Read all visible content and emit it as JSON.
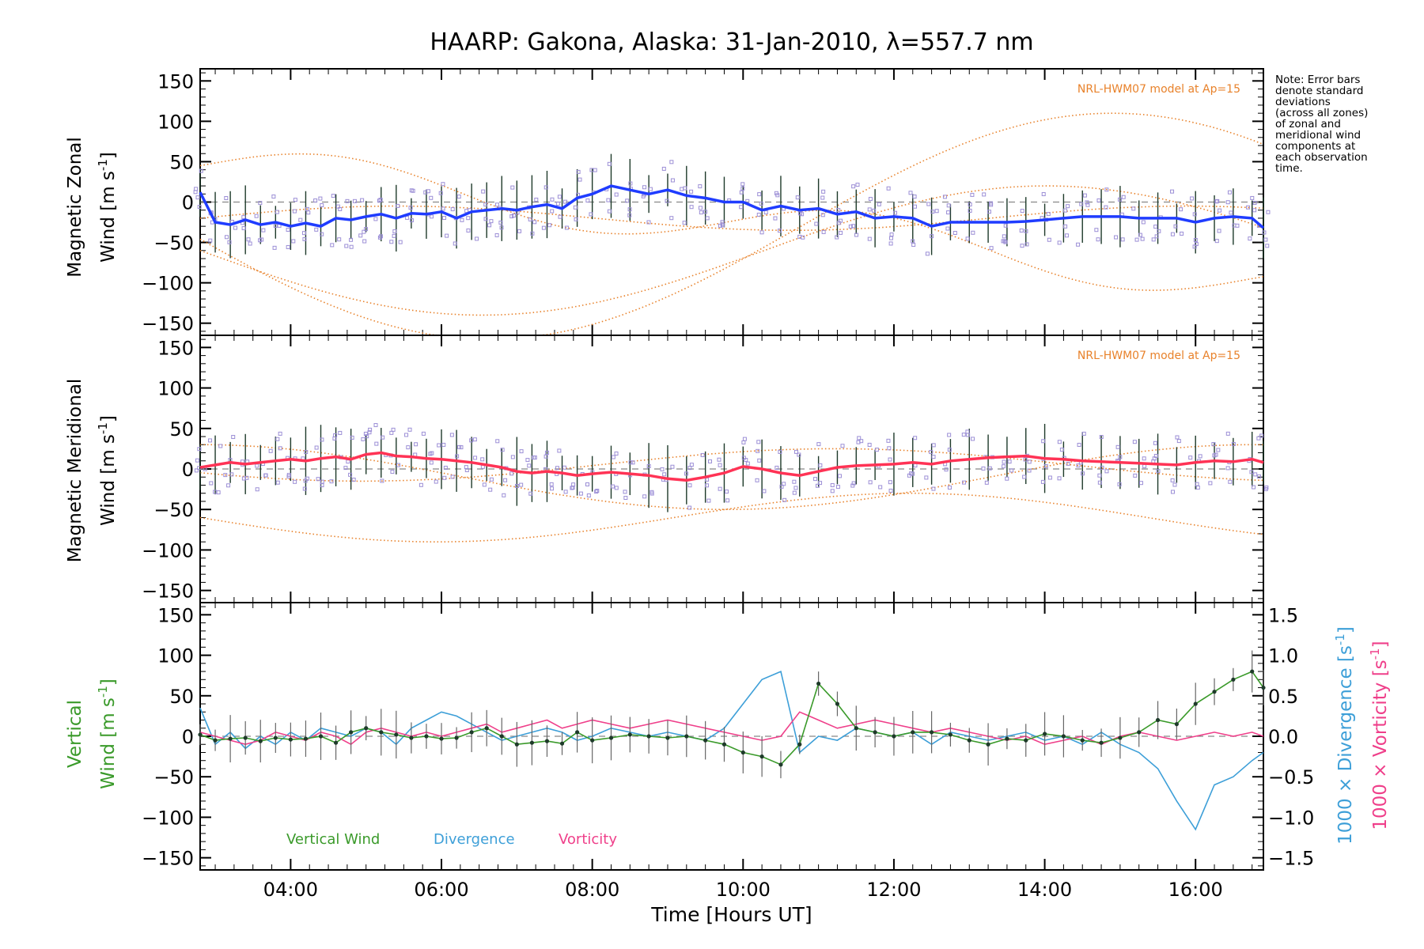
{
  "title": "HAARP: Gakona,  Alaska: 31-Jan-2010, λ=557.7 nm",
  "note": [
    "Note: Error bars",
    "denote standard",
    "deviations",
    "(across all zones)",
    "of zonal and",
    "meridional wind",
    "components at",
    "each observation",
    "time."
  ],
  "xlabel": "Time [Hours UT]",
  "xticks": [
    "04:00",
    "06:00",
    "08:00",
    "10:00",
    "12:00",
    "14:00",
    "16:00"
  ],
  "yticks": [
    "150",
    "100",
    "50",
    "0",
    "−50",
    "−100",
    "−150"
  ],
  "rticks": [
    "1.5",
    "1.0",
    "0.5",
    "0.0",
    "−0.5",
    "−1.0",
    "−1.5"
  ],
  "panels": {
    "zonal": {
      "ylabel1": "Magnetic Zonal",
      "ylabel2": "Wind [m s",
      "ylabel_sup": "-1",
      "ylabel_end": "]",
      "model_label": "NRL-HWM07 model at Ap=15"
    },
    "meridional": {
      "ylabel1": "Magnetic Meridional",
      "ylabel2": "Wind [m s",
      "ylabel_sup": "-1",
      "ylabel_end": "]",
      "model_label": "NRL-HWM07 model at Ap=15"
    },
    "vertical": {
      "ylabel1": "Vertical",
      "ylabel2": "Wind [m s",
      "ylabel_sup": "-1",
      "ylabel_end": "]",
      "right_label1": "1000 × Divergence [s",
      "right_label2": "1000 × Vorticity [s",
      "right_sup": "-1",
      "right_end": "]"
    }
  },
  "legend": {
    "vertical": "Vertical Wind",
    "divergence": "Divergence",
    "vorticity": "Vorticity"
  },
  "colors": {
    "zonal": "#1f3cff",
    "meridional": "#ff3355",
    "vertical": "#3a9a2a",
    "divergence": "#3d9fd8",
    "vorticity": "#ef3f8a",
    "model": "#e8822b",
    "scatter": "#9c8fd6",
    "errorbar": "#1e3a2a"
  },
  "chart_data": [
    {
      "type": "line",
      "title": "Magnetic Zonal Wind",
      "xlim": [
        2.8,
        16.9
      ],
      "ylim": [
        -165,
        165
      ],
      "series": [
        {
          "x": [
            2.8,
            3.0,
            3.2,
            3.4,
            3.6,
            3.8,
            4.0,
            4.2,
            4.4,
            4.6,
            4.8,
            5.0,
            5.2,
            5.4,
            5.6,
            5.8,
            6.0,
            6.2,
            6.4,
            6.6,
            6.8,
            7.0,
            7.2,
            7.4,
            7.6,
            7.8,
            8.0,
            8.25,
            8.5,
            8.75,
            9.0,
            9.25,
            9.5,
            9.75,
            10.0,
            10.25,
            10.5,
            10.75,
            11.0,
            11.25,
            11.5,
            11.75,
            12.0,
            12.25,
            12.5,
            12.75,
            13.0,
            13.25,
            13.5,
            13.75,
            14.0,
            14.25,
            14.5,
            14.75,
            15.0,
            15.25,
            15.5,
            15.75,
            16.0,
            16.25,
            16.5,
            16.75,
            16.9
          ],
          "values": [
            12,
            -25,
            -28,
            -22,
            -28,
            -25,
            -30,
            -26,
            -30,
            -20,
            -22,
            -18,
            -15,
            -20,
            -14,
            -15,
            -12,
            -20,
            -12,
            -10,
            -8,
            -10,
            -6,
            -3,
            -8,
            5,
            10,
            20,
            15,
            10,
            15,
            8,
            5,
            0,
            0,
            -10,
            -5,
            -10,
            -8,
            -15,
            -12,
            -20,
            -18,
            -20,
            -30,
            -25,
            -25,
            -25,
            -25,
            -24,
            -22,
            -20,
            -18,
            -18,
            -18,
            -20,
            -20,
            -20,
            -25,
            -20,
            -18,
            -20,
            -32
          ]
        }
      ]
    },
    {
      "type": "line",
      "title": "Magnetic Meridional Wind",
      "xlim": [
        2.8,
        16.9
      ],
      "ylim": [
        -165,
        165
      ],
      "series": [
        {
          "x": [
            2.8,
            3.0,
            3.2,
            3.4,
            3.6,
            3.8,
            4.0,
            4.2,
            4.4,
            4.6,
            4.8,
            5.0,
            5.2,
            5.4,
            5.6,
            5.8,
            6.0,
            6.2,
            6.4,
            6.6,
            6.8,
            7.0,
            7.2,
            7.4,
            7.6,
            7.8,
            8.0,
            8.25,
            8.5,
            8.75,
            9.0,
            9.25,
            9.5,
            9.75,
            10.0,
            10.25,
            10.5,
            10.75,
            11.0,
            11.25,
            11.5,
            11.75,
            12.0,
            12.25,
            12.5,
            12.75,
            13.0,
            13.25,
            13.5,
            13.75,
            14.0,
            14.25,
            14.5,
            14.75,
            15.0,
            15.25,
            15.5,
            15.75,
            16.0,
            16.25,
            16.5,
            16.75,
            16.9
          ],
          "values": [
            2,
            5,
            8,
            6,
            8,
            10,
            12,
            10,
            13,
            15,
            12,
            18,
            20,
            16,
            15,
            13,
            12,
            10,
            8,
            5,
            2,
            -3,
            -5,
            -3,
            -5,
            -8,
            -6,
            -4,
            -6,
            -8,
            -12,
            -14,
            -10,
            -5,
            3,
            0,
            -5,
            -8,
            -3,
            2,
            4,
            5,
            6,
            8,
            6,
            10,
            12,
            14,
            15,
            16,
            13,
            12,
            10,
            9,
            8,
            7,
            6,
            5,
            8,
            10,
            9,
            12,
            8
          ]
        }
      ]
    },
    {
      "type": "line",
      "title": "Vertical Wind, Divergence and Vorticity",
      "xlim": [
        2.8,
        16.9
      ],
      "ylim": [
        -165,
        165
      ],
      "y2lim": [
        -1.65,
        1.65
      ],
      "series": [
        {
          "name": "Vertical Wind",
          "x": [
            2.8,
            3.0,
            3.2,
            3.4,
            3.6,
            3.8,
            4.0,
            4.2,
            4.4,
            4.6,
            4.8,
            5.0,
            5.2,
            5.4,
            5.6,
            5.8,
            6.0,
            6.2,
            6.4,
            6.6,
            6.8,
            7.0,
            7.2,
            7.4,
            7.6,
            7.8,
            8.0,
            8.25,
            8.5,
            8.75,
            9.0,
            9.25,
            9.5,
            9.75,
            10.0,
            10.25,
            10.5,
            10.75,
            11.0,
            11.25,
            11.5,
            11.75,
            12.0,
            12.25,
            12.5,
            12.75,
            13.0,
            13.25,
            13.5,
            13.75,
            14.0,
            14.25,
            14.5,
            14.75,
            15.0,
            15.25,
            15.5,
            15.75,
            16.0,
            16.25,
            16.5,
            16.75,
            16.9
          ],
          "values": [
            2,
            -5,
            -3,
            -2,
            -6,
            -2,
            -4,
            -3,
            0,
            -8,
            5,
            10,
            5,
            2,
            -2,
            0,
            -3,
            -2,
            5,
            10,
            0,
            -10,
            -8,
            -6,
            -9,
            5,
            -5,
            -2,
            2,
            0,
            -2,
            0,
            -5,
            -10,
            -20,
            -25,
            -35,
            -10,
            65,
            40,
            10,
            5,
            0,
            5,
            5,
            2,
            -5,
            -10,
            -3,
            -5,
            3,
            0,
            -5,
            -8,
            -2,
            5,
            20,
            15,
            40,
            55,
            70,
            80,
            60
          ]
        },
        {
          "name": "Divergence",
          "axis": "right",
          "x": [
            2.8,
            3.0,
            3.2,
            3.4,
            3.6,
            3.8,
            4.0,
            4.2,
            4.4,
            4.6,
            4.8,
            5.0,
            5.2,
            5.4,
            5.6,
            5.8,
            6.0,
            6.2,
            6.4,
            6.6,
            6.8,
            7.0,
            7.2,
            7.4,
            7.6,
            7.8,
            8.0,
            8.25,
            8.5,
            8.75,
            9.0,
            9.25,
            9.5,
            9.75,
            10.0,
            10.25,
            10.5,
            10.75,
            11.0,
            11.25,
            11.5,
            11.75,
            12.0,
            12.25,
            12.5,
            12.75,
            13.0,
            13.25,
            13.5,
            13.75,
            14.0,
            14.25,
            14.5,
            14.75,
            15.0,
            15.25,
            15.5,
            15.75,
            16.0,
            16.25,
            16.5,
            16.75,
            16.9
          ],
          "values": [
            0.35,
            -0.1,
            0.05,
            -0.15,
            0.0,
            -0.1,
            0.05,
            -0.05,
            0.1,
            0.05,
            0.0,
            0.1,
            0.05,
            -0.1,
            0.1,
            0.2,
            0.3,
            0.25,
            0.15,
            0.05,
            -0.05,
            0.0,
            0.05,
            0.1,
            0.05,
            -0.05,
            0.0,
            0.1,
            0.05,
            0.0,
            0.05,
            0.0,
            -0.05,
            0.1,
            0.4,
            0.7,
            0.8,
            -0.2,
            0.0,
            -0.05,
            0.1,
            0.05,
            0.0,
            0.05,
            -0.1,
            0.05,
            0.0,
            -0.05,
            0.0,
            0.05,
            -0.05,
            0.0,
            -0.1,
            0.05,
            -0.1,
            -0.2,
            -0.4,
            -0.8,
            -1.15,
            -0.6,
            -0.5,
            -0.3,
            -0.2
          ]
        },
        {
          "name": "Vorticity",
          "axis": "right",
          "x": [
            2.8,
            3.0,
            3.2,
            3.4,
            3.6,
            3.8,
            4.0,
            4.2,
            4.4,
            4.6,
            4.8,
            5.0,
            5.2,
            5.4,
            5.6,
            5.8,
            6.0,
            6.2,
            6.4,
            6.6,
            6.8,
            7.0,
            7.2,
            7.4,
            7.6,
            7.8,
            8.0,
            8.25,
            8.5,
            8.75,
            9.0,
            9.25,
            9.5,
            9.75,
            10.0,
            10.25,
            10.5,
            10.75,
            11.0,
            11.25,
            11.5,
            11.75,
            12.0,
            12.25,
            12.5,
            12.75,
            13.0,
            13.25,
            13.5,
            13.75,
            14.0,
            14.25,
            14.5,
            14.75,
            15.0,
            15.25,
            15.5,
            15.75,
            16.0,
            16.25,
            16.5,
            16.75,
            16.9
          ],
          "values": [
            0.05,
            0.0,
            -0.05,
            -0.1,
            -0.05,
            0.05,
            0.0,
            -0.05,
            0.05,
            0.0,
            -0.1,
            0.05,
            0.1,
            0.05,
            0.0,
            0.05,
            0.0,
            0.05,
            0.1,
            0.15,
            0.05,
            0.1,
            0.15,
            0.2,
            0.1,
            0.15,
            0.2,
            0.15,
            0.1,
            0.15,
            0.2,
            0.15,
            0.1,
            0.05,
            0.0,
            -0.05,
            0.0,
            0.3,
            0.2,
            0.1,
            0.15,
            0.2,
            0.15,
            0.1,
            0.05,
            0.1,
            0.05,
            0.0,
            -0.05,
            0.0,
            -0.1,
            -0.05,
            0.0,
            -0.1,
            0.0,
            0.05,
            0.0,
            -0.05,
            0.0,
            0.05,
            0.0,
            0.05,
            0.0
          ]
        }
      ]
    }
  ]
}
